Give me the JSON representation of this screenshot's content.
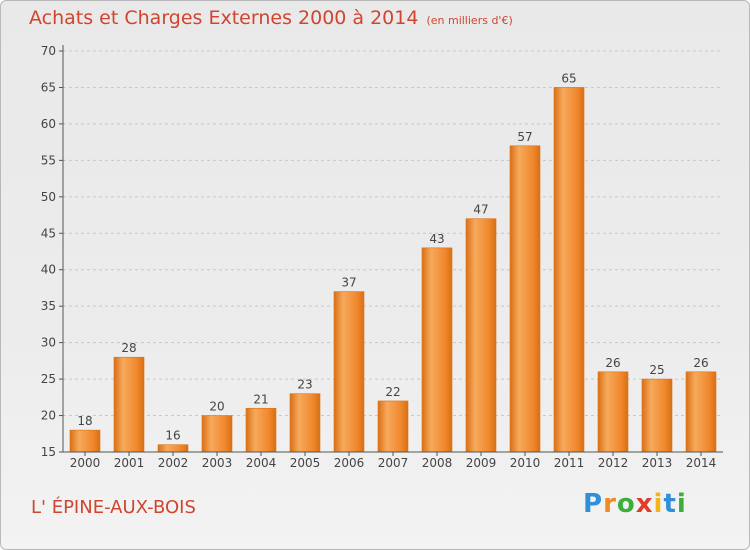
{
  "chart_data": {
    "type": "bar",
    "title": "Achats et Charges Externes 2000 à 2014",
    "subtitle": "(en milliers d'€)",
    "categories": [
      "2000",
      "2001",
      "2002",
      "2003",
      "2004",
      "2005",
      "2006",
      "2007",
      "2008",
      "2009",
      "2010",
      "2011",
      "2012",
      "2013",
      "2014"
    ],
    "values": [
      18,
      28,
      16,
      20,
      21,
      23,
      37,
      22,
      43,
      47,
      57,
      65,
      26,
      25,
      26
    ],
    "ylim": [
      15,
      70
    ],
    "yticks": [
      15,
      20,
      25,
      30,
      35,
      40,
      45,
      50,
      55,
      60,
      65,
      70
    ],
    "grid": "dashed horizontal",
    "bar_color": "#f0892e",
    "bar_highlight": "#f7a95c",
    "bar_shadow": "#d96f15"
  },
  "commune": "L' ÉPINE-AUX-BOIS",
  "brand": {
    "letters": [
      {
        "char": "P",
        "color": "#2f8fd8"
      },
      {
        "char": "r",
        "color": "#f08a24"
      },
      {
        "char": "o",
        "color": "#3cae3c"
      },
      {
        "char": "x",
        "color": "#e23b2e"
      },
      {
        "char": "i",
        "color": "#f2b51c"
      },
      {
        "char": "t",
        "color": "#2f8fd8"
      },
      {
        "char": "i",
        "color": "#3cae3c"
      }
    ]
  },
  "colors": {
    "title": "#d0452f",
    "axis": "#555555",
    "grid": "#c8c8c8",
    "text": "#444444"
  }
}
